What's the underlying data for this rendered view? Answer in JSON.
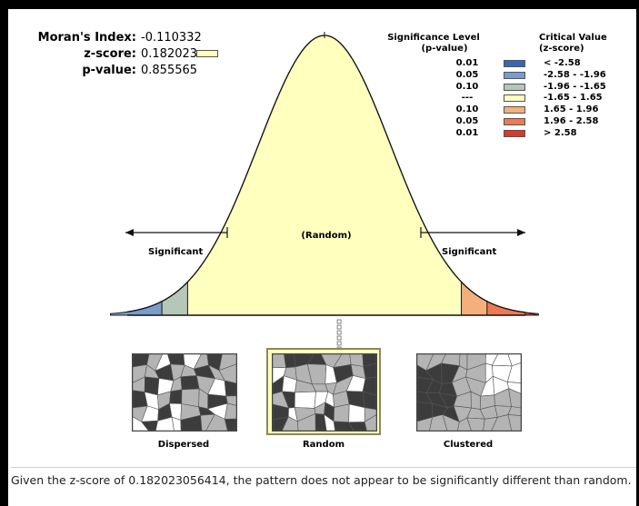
{
  "stats": {
    "moran_label": "Moran's Index:",
    "moran_value": "-0.110332",
    "z_label": "z-score:",
    "z_value": "0.182023",
    "p_label": "p-value:",
    "p_value": "0.855565",
    "z_marker_color": "#ffffbe"
  },
  "legend": {
    "sig_header_line1": "Significance Level",
    "sig_header_line2": "(p-value)",
    "crit_header_line1": "Critical Value",
    "crit_header_line2": "(z-score)",
    "rows": [
      {
        "p": "0.01",
        "z": "< -2.58",
        "color": "#3a66b0"
      },
      {
        "p": "0.05",
        "z": "-2.58 - -1.96",
        "color": "#7a9cc9"
      },
      {
        "p": "0.10",
        "z": "-1.96 - -1.65",
        "color": "#b6c6b8"
      },
      {
        "p": "---",
        "z": "-1.65 - 1.65",
        "color": "#ffffbe"
      },
      {
        "p": "0.10",
        "z": "1.65 - 1.96",
        "color": "#f4b07c"
      },
      {
        "p": "0.05",
        "z": "1.96 - 2.58",
        "color": "#ec7a54"
      },
      {
        "p": "0.01",
        "z": "> 2.58",
        "color": "#d63a2a"
      }
    ]
  },
  "curve": {
    "random_label": "(Random)",
    "significant_left": "Significant",
    "significant_right": "Significant",
    "z_score": 0.182023
  },
  "patterns": {
    "dispersed": "Dispersed",
    "random": "Random",
    "clustered": "Clustered",
    "highlight_color": "#ffffbe"
  },
  "caption": {
    "text": "Given the z-score of 0.182023056414, the pattern does not appear to be significantly different than random."
  }
}
